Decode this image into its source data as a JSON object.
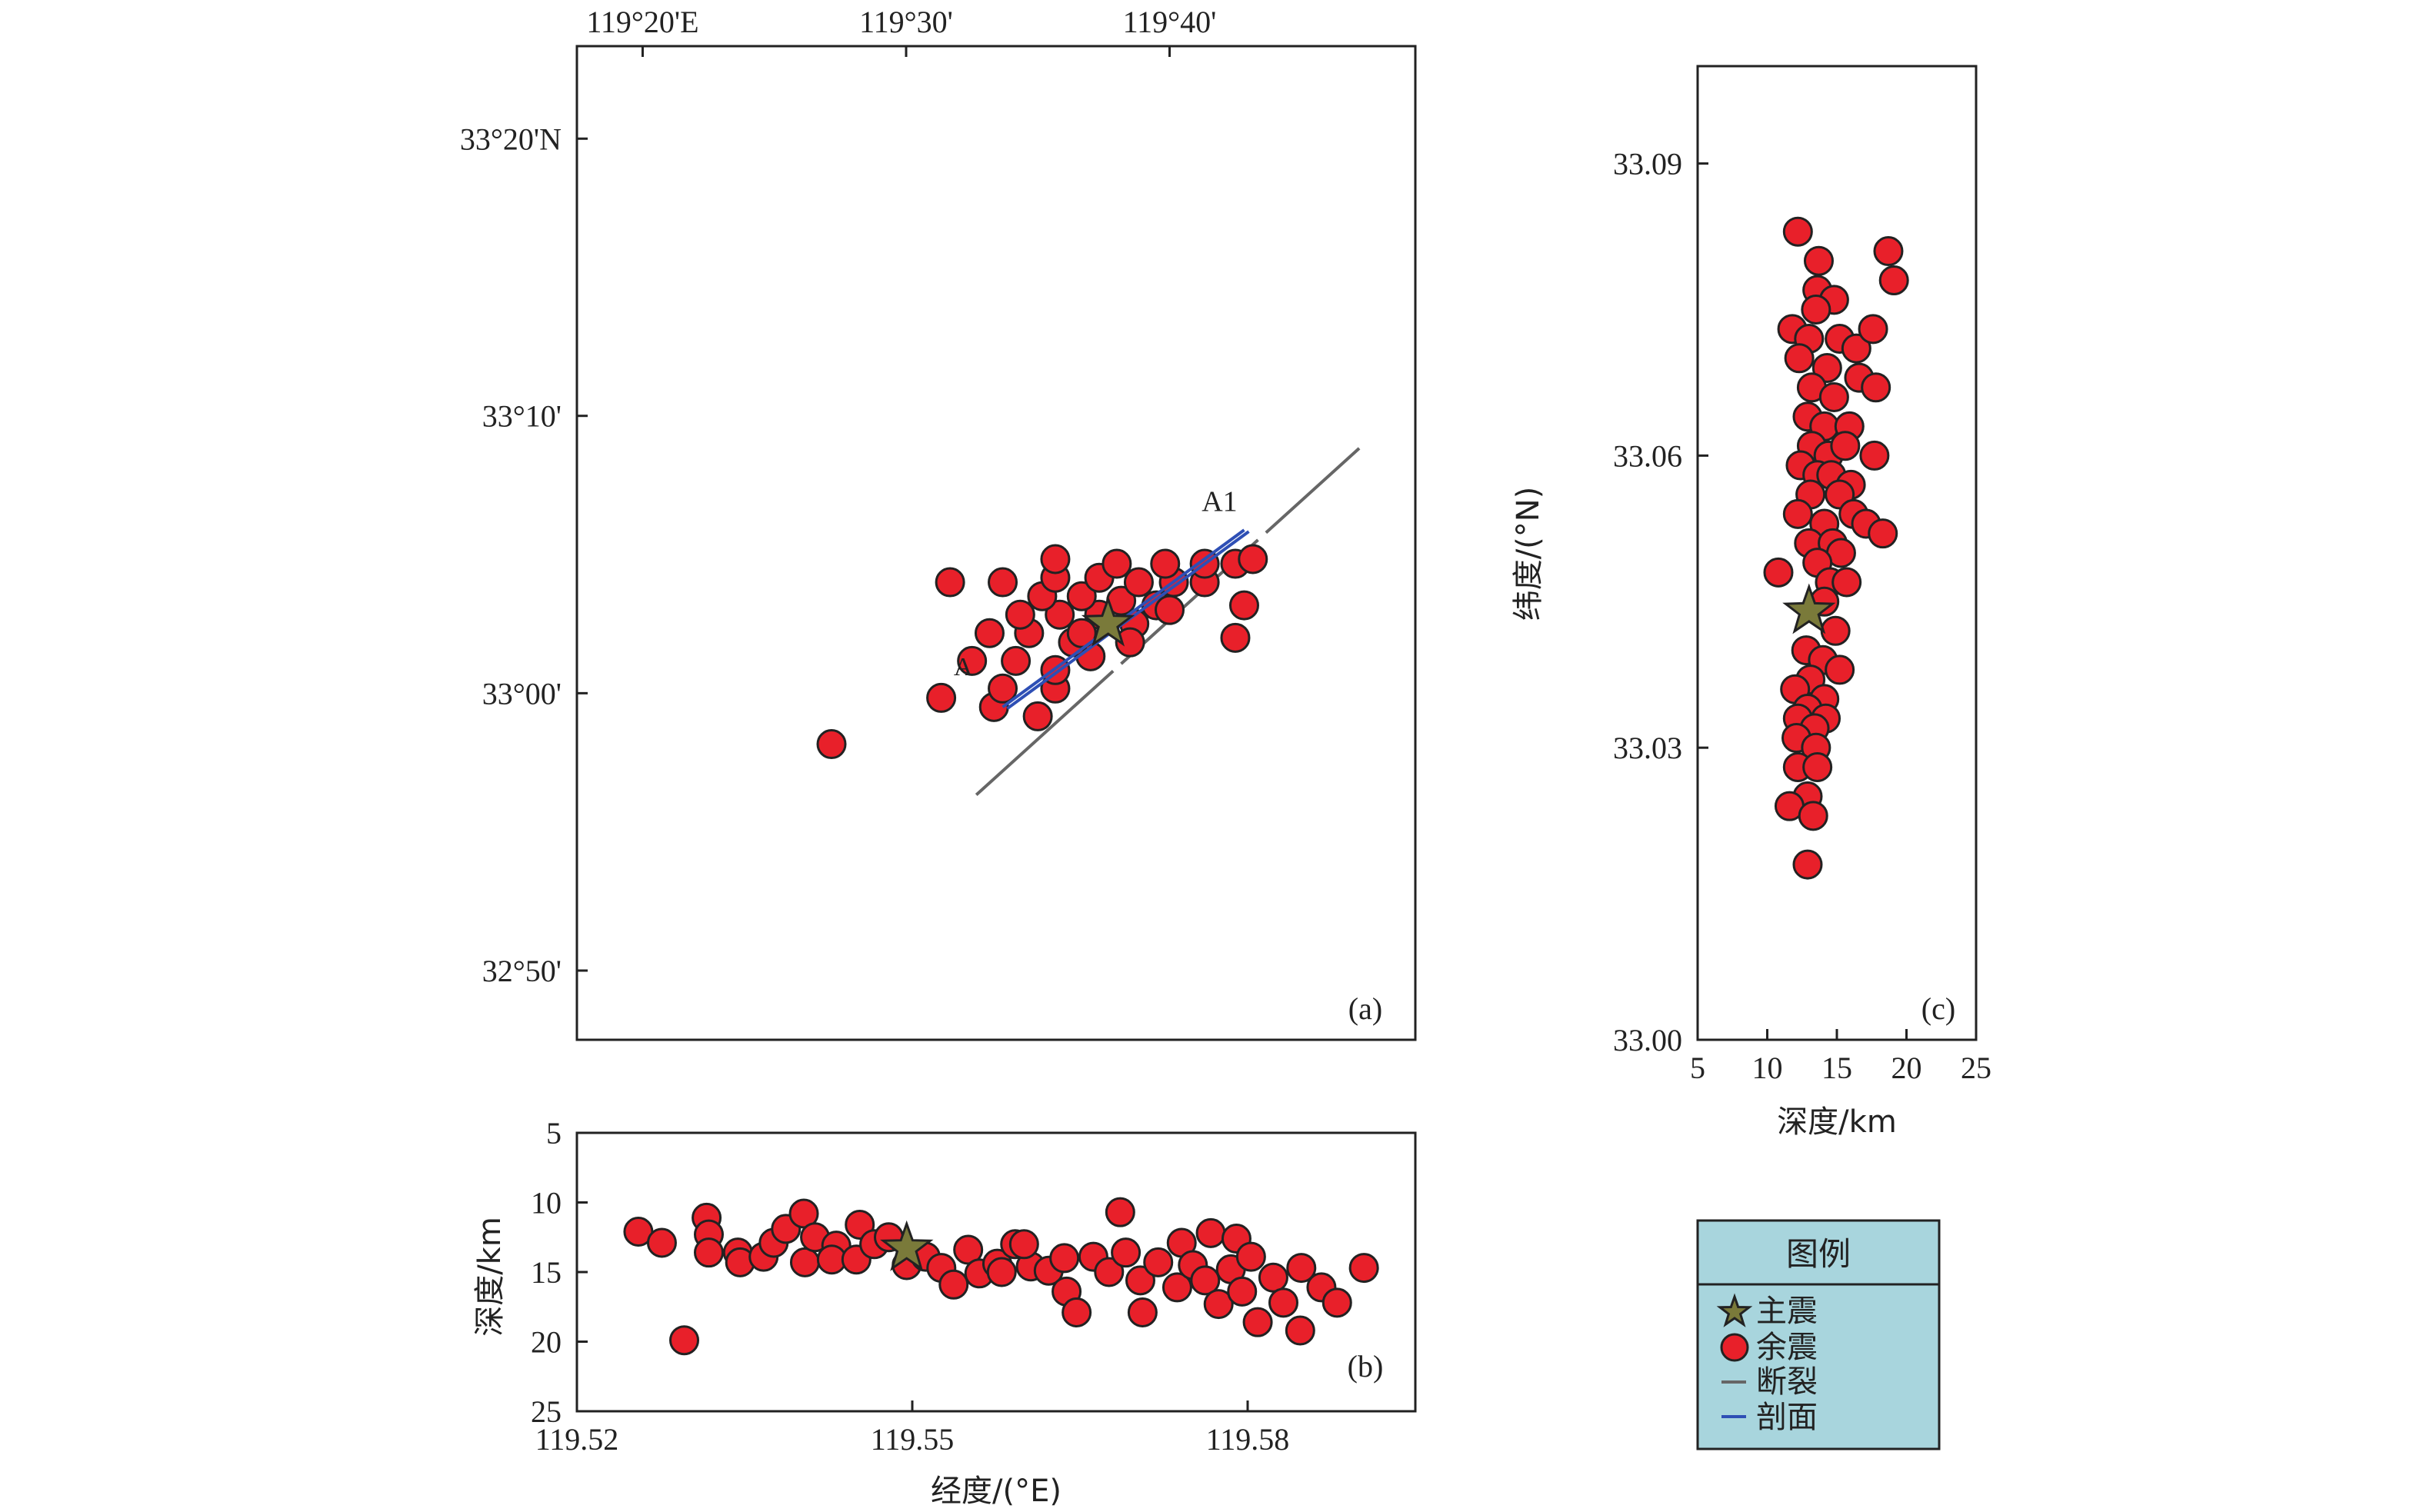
{
  "chart_data": [
    {
      "type": "scatter",
      "panel_label": "(a)",
      "x_ticks": [
        "119°20'E",
        "119°30'",
        "119°40'"
      ],
      "x_tick_values": [
        119.3333,
        119.5,
        119.6667
      ],
      "y_ticks": [
        "33°20'N",
        "33°10'",
        "33°00'",
        "32°50'"
      ],
      "y_tick_values": [
        33.3333,
        33.1667,
        33.0,
        32.8333
      ],
      "xlim": [
        119.2917,
        119.8222
      ],
      "ylim": [
        32.7917,
        33.3889
      ],
      "fault": {
        "x": [
          119.5444,
          119.7867
        ],
        "y": [
          32.9389,
          33.1472
        ]
      },
      "profile": {
        "x": [
          119.5611,
          119.7139
        ],
        "y": [
          32.9917,
          33.0981
        ]
      },
      "profile_labels": [
        "A",
        "A1"
      ],
      "profile_label_positions": [
        {
          "x": 119.5361,
          "y": 33.0108
        },
        {
          "x": 119.6983,
          "y": 33.1094
        }
      ],
      "mainshock": {
        "x": 119.6278,
        "y": 33.0417
      },
      "aftershocks": [
        {
          "x": 119.4528,
          "y": 32.9694
        },
        {
          "x": 119.5222,
          "y": 32.9972
        },
        {
          "x": 119.5556,
          "y": 32.9917
        },
        {
          "x": 119.5833,
          "y": 32.9861
        },
        {
          "x": 119.5611,
          "y": 33.0028
        },
        {
          "x": 119.5944,
          "y": 33.0028
        },
        {
          "x": 119.5417,
          "y": 33.0194
        },
        {
          "x": 119.5694,
          "y": 33.0194
        },
        {
          "x": 119.5944,
          "y": 33.0139
        },
        {
          "x": 119.6167,
          "y": 33.0222
        },
        {
          "x": 119.5528,
          "y": 33.0361
        },
        {
          "x": 119.5778,
          "y": 33.0361
        },
        {
          "x": 119.6056,
          "y": 33.0306
        },
        {
          "x": 119.5722,
          "y": 33.0472
        },
        {
          "x": 119.5972,
          "y": 33.0472
        },
        {
          "x": 119.6222,
          "y": 33.0472
        },
        {
          "x": 119.6444,
          "y": 33.0417
        },
        {
          "x": 119.5861,
          "y": 33.0583
        },
        {
          "x": 119.6111,
          "y": 33.0583
        },
        {
          "x": 119.6361,
          "y": 33.0556
        },
        {
          "x": 119.6583,
          "y": 33.0528
        },
        {
          "x": 119.5278,
          "y": 33.0667
        },
        {
          "x": 119.5611,
          "y": 33.0667
        },
        {
          "x": 119.5944,
          "y": 33.0694
        },
        {
          "x": 119.6222,
          "y": 33.0694
        },
        {
          "x": 119.6472,
          "y": 33.0667
        },
        {
          "x": 119.6694,
          "y": 33.0667
        },
        {
          "x": 119.6889,
          "y": 33.0667
        },
        {
          "x": 119.5944,
          "y": 33.0806
        },
        {
          "x": 119.6333,
          "y": 33.0778
        },
        {
          "x": 119.6639,
          "y": 33.0778
        },
        {
          "x": 119.6889,
          "y": 33.0778
        },
        {
          "x": 119.7083,
          "y": 33.0778
        },
        {
          "x": 119.7194,
          "y": 33.0806
        },
        {
          "x": 119.7139,
          "y": 33.0528
        },
        {
          "x": 119.7083,
          "y": 33.0333
        },
        {
          "x": 119.6111,
          "y": 33.0361
        },
        {
          "x": 119.6417,
          "y": 33.0306
        },
        {
          "x": 119.6667,
          "y": 33.05
        }
      ]
    },
    {
      "type": "scatter",
      "panel_label": "(b)",
      "xlabel": "经度/(°E)",
      "ylabel": "深度/km",
      "x_ticks": [
        "119.52",
        "119.55",
        "119.58"
      ],
      "x_tick_values": [
        119.52,
        119.55,
        119.58
      ],
      "y_ticks": [
        "5",
        "10",
        "15",
        "20",
        "25"
      ],
      "y_tick_values": [
        5,
        10,
        15,
        20,
        25
      ],
      "xlim": [
        119.52,
        119.595
      ],
      "ylim": [
        25,
        5
      ],
      "mainshock": {
        "x": 119.5495,
        "y": 13.3
      },
      "aftershocks": [
        {
          "x": 119.5255,
          "y": 12.1
        },
        {
          "x": 119.5276,
          "y": 12.9
        },
        {
          "x": 119.5316,
          "y": 11.1
        },
        {
          "x": 119.5318,
          "y": 12.3
        },
        {
          "x": 119.5318,
          "y": 13.6
        },
        {
          "x": 119.5296,
          "y": 19.9
        },
        {
          "x": 119.5344,
          "y": 13.6
        },
        {
          "x": 119.5346,
          "y": 14.3
        },
        {
          "x": 119.5367,
          "y": 13.9
        },
        {
          "x": 119.5376,
          "y": 12.9
        },
        {
          "x": 119.5387,
          "y": 11.9
        },
        {
          "x": 119.5404,
          "y": 14.3
        },
        {
          "x": 119.5403,
          "y": 10.8
        },
        {
          "x": 119.5413,
          "y": 12.5
        },
        {
          "x": 119.5432,
          "y": 13.1
        },
        {
          "x": 119.5428,
          "y": 14.1
        },
        {
          "x": 119.545,
          "y": 14.1
        },
        {
          "x": 119.5453,
          "y": 11.6
        },
        {
          "x": 119.5466,
          "y": 13.0
        },
        {
          "x": 119.5479,
          "y": 12.5
        },
        {
          "x": 119.5495,
          "y": 14.5
        },
        {
          "x": 119.5512,
          "y": 13.9
        },
        {
          "x": 119.5526,
          "y": 14.7
        },
        {
          "x": 119.5537,
          "y": 15.9
        },
        {
          "x": 119.555,
          "y": 13.4
        },
        {
          "x": 119.556,
          "y": 15.1
        },
        {
          "x": 119.5576,
          "y": 14.4
        },
        {
          "x": 119.5592,
          "y": 13.0
        },
        {
          "x": 119.5606,
          "y": 14.6
        },
        {
          "x": 119.5622,
          "y": 14.9
        },
        {
          "x": 119.5636,
          "y": 14.0
        },
        {
          "x": 119.5638,
          "y": 16.4
        },
        {
          "x": 119.5647,
          "y": 17.9
        },
        {
          "x": 119.5662,
          "y": 13.9
        },
        {
          "x": 119.5676,
          "y": 15.0
        },
        {
          "x": 119.5686,
          "y": 10.7
        },
        {
          "x": 119.5691,
          "y": 13.6
        },
        {
          "x": 119.5704,
          "y": 15.6
        },
        {
          "x": 119.5706,
          "y": 17.9
        },
        {
          "x": 119.572,
          "y": 14.3
        },
        {
          "x": 119.5737,
          "y": 16.1
        },
        {
          "x": 119.5741,
          "y": 12.9
        },
        {
          "x": 119.5751,
          "y": 14.5
        },
        {
          "x": 119.5762,
          "y": 15.6
        },
        {
          "x": 119.5767,
          "y": 12.2
        },
        {
          "x": 119.5774,
          "y": 17.3
        },
        {
          "x": 119.5785,
          "y": 14.8
        },
        {
          "x": 119.5795,
          "y": 16.4
        },
        {
          "x": 119.579,
          "y": 12.6
        },
        {
          "x": 119.5803,
          "y": 13.9
        },
        {
          "x": 119.5809,
          "y": 18.6
        },
        {
          "x": 119.5823,
          "y": 15.4
        },
        {
          "x": 119.5832,
          "y": 17.2
        },
        {
          "x": 119.5847,
          "y": 19.2
        },
        {
          "x": 119.5848,
          "y": 14.7
        },
        {
          "x": 119.5866,
          "y": 16.1
        },
        {
          "x": 119.588,
          "y": 17.2
        },
        {
          "x": 119.5904,
          "y": 14.7
        },
        {
          "x": 119.56,
          "y": 13.0
        },
        {
          "x": 119.558,
          "y": 15.0
        }
      ]
    },
    {
      "type": "scatter",
      "panel_label": "(c)",
      "xlabel": "深度/km",
      "ylabel": "纬度/(°N)",
      "x_ticks": [
        "5",
        "10",
        "15",
        "20",
        "25"
      ],
      "x_tick_values": [
        5,
        10,
        15,
        20,
        25
      ],
      "y_ticks": [
        "33.09",
        "33.06",
        "33.03",
        "33.00"
      ],
      "y_tick_values": [
        33.09,
        33.06,
        33.03,
        33.0
      ],
      "xlim": [
        5,
        25
      ],
      "ylim": [
        33.0,
        33.1
      ],
      "mainshock": {
        "x": 13.0,
        "y": 33.044
      },
      "aftershocks": [
        {
          "x": 12.2,
          "y": 33.083
        },
        {
          "x": 13.7,
          "y": 33.08
        },
        {
          "x": 13.6,
          "y": 33.077
        },
        {
          "x": 14.8,
          "y": 33.076
        },
        {
          "x": 13.5,
          "y": 33.075
        },
        {
          "x": 18.7,
          "y": 33.081
        },
        {
          "x": 19.1,
          "y": 33.078
        },
        {
          "x": 11.8,
          "y": 33.073
        },
        {
          "x": 13.0,
          "y": 33.072
        },
        {
          "x": 15.2,
          "y": 33.072
        },
        {
          "x": 16.4,
          "y": 33.071
        },
        {
          "x": 17.6,
          "y": 33.073
        },
        {
          "x": 12.3,
          "y": 33.07
        },
        {
          "x": 14.3,
          "y": 33.069
        },
        {
          "x": 16.6,
          "y": 33.068
        },
        {
          "x": 13.2,
          "y": 33.067
        },
        {
          "x": 14.8,
          "y": 33.066
        },
        {
          "x": 17.8,
          "y": 33.067
        },
        {
          "x": 12.9,
          "y": 33.064
        },
        {
          "x": 14.1,
          "y": 33.063
        },
        {
          "x": 15.9,
          "y": 33.063
        },
        {
          "x": 13.2,
          "y": 33.061
        },
        {
          "x": 14.4,
          "y": 33.06
        },
        {
          "x": 15.6,
          "y": 33.061
        },
        {
          "x": 17.7,
          "y": 33.06
        },
        {
          "x": 12.4,
          "y": 33.059
        },
        {
          "x": 13.6,
          "y": 33.058
        },
        {
          "x": 14.6,
          "y": 33.058
        },
        {
          "x": 16.0,
          "y": 33.057
        },
        {
          "x": 13.1,
          "y": 33.056
        },
        {
          "x": 15.2,
          "y": 33.056
        },
        {
          "x": 12.2,
          "y": 33.054
        },
        {
          "x": 14.1,
          "y": 33.053
        },
        {
          "x": 16.2,
          "y": 33.054
        },
        {
          "x": 17.1,
          "y": 33.053
        },
        {
          "x": 18.3,
          "y": 33.052
        },
        {
          "x": 13.0,
          "y": 33.051
        },
        {
          "x": 14.7,
          "y": 33.051
        },
        {
          "x": 15.3,
          "y": 33.05
        },
        {
          "x": 13.6,
          "y": 33.049
        },
        {
          "x": 10.8,
          "y": 33.048
        },
        {
          "x": 14.5,
          "y": 33.047
        },
        {
          "x": 15.7,
          "y": 33.047
        },
        {
          "x": 14.1,
          "y": 33.045
        },
        {
          "x": 14.9,
          "y": 33.042
        },
        {
          "x": 12.8,
          "y": 33.04
        },
        {
          "x": 14.0,
          "y": 33.039
        },
        {
          "x": 13.1,
          "y": 33.037
        },
        {
          "x": 15.2,
          "y": 33.038
        },
        {
          "x": 12.0,
          "y": 33.036
        },
        {
          "x": 14.1,
          "y": 33.035
        },
        {
          "x": 12.9,
          "y": 33.034
        },
        {
          "x": 14.2,
          "y": 33.033
        },
        {
          "x": 12.2,
          "y": 33.033
        },
        {
          "x": 13.4,
          "y": 33.032
        },
        {
          "x": 12.1,
          "y": 33.031
        },
        {
          "x": 13.5,
          "y": 33.03
        },
        {
          "x": 12.2,
          "y": 33.028
        },
        {
          "x": 13.6,
          "y": 33.028
        },
        {
          "x": 12.9,
          "y": 33.025
        },
        {
          "x": 11.6,
          "y": 33.024
        },
        {
          "x": 13.3,
          "y": 33.023
        },
        {
          "x": 12.9,
          "y": 33.018
        }
      ]
    }
  ],
  "legend": {
    "title": "图例",
    "items": [
      {
        "label": "主震",
        "symbol": "star"
      },
      {
        "label": "余震",
        "symbol": "circle"
      },
      {
        "label": "断裂",
        "symbol": "fault-line"
      },
      {
        "label": "剖面",
        "symbol": "profile-line"
      }
    ],
    "background": "#a8d5dd"
  },
  "colors": {
    "aftershock": "#e8202a",
    "mainshock": "#7a7a3a",
    "fault": "#666666",
    "profile": "#2e4fb5"
  }
}
